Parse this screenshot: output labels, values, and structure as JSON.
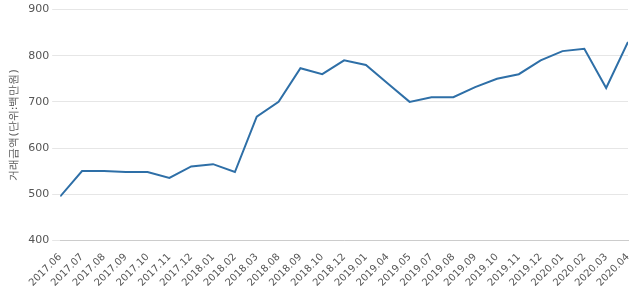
{
  "chart_data": {
    "type": "line",
    "y_label": "거래금액(단위:백만원)",
    "categories": [
      "2017.06",
      "2017.07",
      "2017.08",
      "2017.09",
      "2017.10",
      "2017.11",
      "2017.12",
      "2018.01",
      "2018.02",
      "2018.03",
      "2018.08",
      "2018.09",
      "2018.10",
      "2018.12",
      "2019.01",
      "2019.04",
      "2019.05",
      "2019.07",
      "2019.08",
      "2019.09",
      "2019.10",
      "2019.11",
      "2019.12",
      "2020.01",
      "2020.02",
      "2020.03",
      "2020.04"
    ],
    "values": [
      495,
      550,
      550,
      548,
      548,
      535,
      560,
      565,
      548,
      668,
      700,
      773,
      760,
      790,
      780,
      740,
      700,
      710,
      710,
      732,
      750,
      760,
      790,
      810,
      815,
      730,
      830
    ],
    "color": "#2e6fa7",
    "ylim": [
      400,
      900
    ],
    "yticks": [
      400,
      500,
      600,
      700,
      800,
      900
    ],
    "grid": true
  }
}
